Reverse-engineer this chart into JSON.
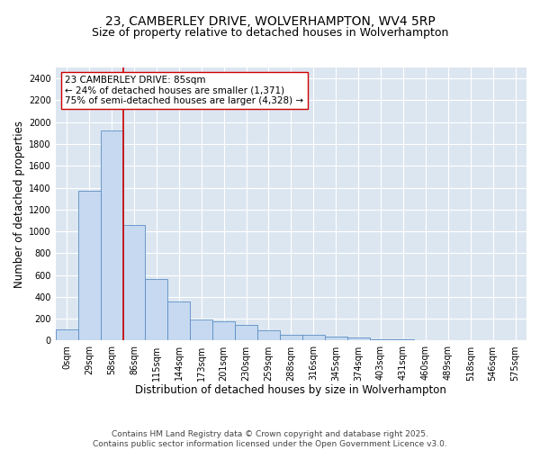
{
  "title_line1": "23, CAMBERLEY DRIVE, WOLVERHAMPTON, WV4 5RP",
  "title_line2": "Size of property relative to detached houses in Wolverhampton",
  "xlabel": "Distribution of detached houses by size in Wolverhampton",
  "ylabel": "Number of detached properties",
  "bar_values": [
    100,
    1370,
    1920,
    1060,
    560,
    360,
    190,
    175,
    145,
    95,
    55,
    55,
    35,
    25,
    15,
    10,
    5,
    5,
    5,
    5,
    5
  ],
  "bin_labels": [
    "0sqm",
    "29sqm",
    "58sqm",
    "86sqm",
    "115sqm",
    "144sqm",
    "173sqm",
    "201sqm",
    "230sqm",
    "259sqm",
    "288sqm",
    "316sqm",
    "345sqm",
    "374sqm",
    "403sqm",
    "431sqm",
    "460sqm",
    "489sqm",
    "518sqm",
    "546sqm",
    "575sqm"
  ],
  "bar_color": "#c6d9f0",
  "bar_edge_color": "#5b8ec4",
  "background_color": "#dce6f1",
  "grid_color": "#ffffff",
  "vline_x": 2.5,
  "vline_color": "#cc0000",
  "annotation_text": "23 CAMBERLEY DRIVE: 85sqm\n← 24% of detached houses are smaller (1,371)\n75% of semi-detached houses are larger (4,328) →",
  "annotation_box_color": "#ffffff",
  "annotation_box_edge": "#cc0000",
  "ylim": [
    0,
    2500
  ],
  "yticks": [
    0,
    200,
    400,
    600,
    800,
    1000,
    1200,
    1400,
    1600,
    1800,
    2000,
    2200,
    2400
  ],
  "footer_line1": "Contains HM Land Registry data © Crown copyright and database right 2025.",
  "footer_line2": "Contains public sector information licensed under the Open Government Licence v3.0.",
  "title_fontsize": 10,
  "subtitle_fontsize": 9,
  "axis_label_fontsize": 8.5,
  "tick_fontsize": 7,
  "annotation_fontsize": 7.5,
  "footer_fontsize": 6.5
}
